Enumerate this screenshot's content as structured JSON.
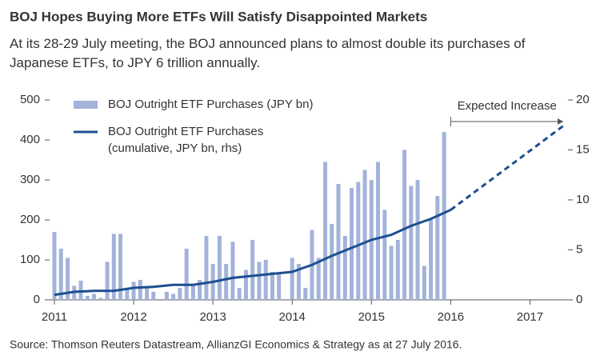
{
  "chart_data": {
    "type": "bar_line",
    "title": "BOJ Hopes Buying More ETFs Will Satisfy Disappointed Markets",
    "subtitle": "At its 28-29 July meeting, the BOJ announced plans to almost double its purchases of\nJapanese ETFs, to JPY 6 trillion annually.",
    "source": "Source: Thomson Reuters Datastream, AllianzGI Economics & Strategy as at 27 July 2016.",
    "annotation": {
      "text": "Expected Increase",
      "x": [
        2016,
        2017.42
      ]
    },
    "xlim": [
      2011,
      2017.48
    ],
    "xticks": [
      2011,
      2012,
      2013,
      2014,
      2015,
      2016,
      2017
    ],
    "ylim": [
      0,
      500
    ],
    "yticks": [
      0,
      100,
      200,
      300,
      400,
      500
    ],
    "y2lim": [
      0,
      20
    ],
    "y2ticks": [
      0,
      5,
      10,
      15,
      20
    ],
    "series": [
      {
        "name": "BOJ Outright ETF Purchases (JPY bn)",
        "kind": "bar",
        "color": "#a3b3da",
        "x": [
          2011,
          2011.083,
          2011.167,
          2011.25,
          2011.333,
          2011.417,
          2011.5,
          2011.583,
          2011.667,
          2011.75,
          2011.833,
          2011.917,
          2012,
          2012.083,
          2012.167,
          2012.25,
          2012.333,
          2012.417,
          2012.5,
          2012.583,
          2012.667,
          2012.75,
          2012.833,
          2012.917,
          2013,
          2013.083,
          2013.167,
          2013.25,
          2013.333,
          2013.417,
          2013.5,
          2013.583,
          2013.667,
          2013.75,
          2013.833,
          2013.917,
          2014,
          2014.083,
          2014.167,
          2014.25,
          2014.333,
          2014.417,
          2014.5,
          2014.583,
          2014.667,
          2014.75,
          2014.833,
          2014.917,
          2015,
          2015.083,
          2015.167,
          2015.25,
          2015.333,
          2015.417,
          2015.5,
          2015.583,
          2015.667,
          2015.75,
          2015.833,
          2015.917
        ],
        "values": [
          170,
          128,
          105,
          35,
          48,
          10,
          15,
          5,
          95,
          165,
          165,
          30,
          45,
          50,
          30,
          20,
          0,
          20,
          15,
          30,
          128,
          40,
          50,
          160,
          90,
          160,
          90,
          145,
          30,
          75,
          150,
          95,
          100,
          70,
          65,
          0,
          105,
          90,
          30,
          175,
          105,
          345,
          190,
          290,
          160,
          280,
          295,
          325,
          300,
          345,
          225,
          135,
          150,
          375,
          285,
          300,
          85,
          200,
          260,
          420
        ]
      },
      {
        "name": "BOJ Outright ETF Purchases\n(cumulative, JPY bn, rhs)",
        "kind": "line",
        "axis": "y2",
        "color": "#1d4f91",
        "x": [
          2011,
          2011.25,
          2011.5,
          2011.75,
          2012,
          2012.25,
          2012.5,
          2012.75,
          2013,
          2013.25,
          2013.5,
          2013.75,
          2014,
          2014.25,
          2014.5,
          2014.75,
          2015,
          2015.25,
          2015.5,
          2015.75,
          2016
        ],
        "values": [
          0.5,
          0.8,
          0.9,
          0.9,
          1.2,
          1.3,
          1.5,
          1.5,
          1.8,
          2.2,
          2.4,
          2.6,
          2.8,
          3.5,
          4.4,
          5.2,
          6.0,
          6.5,
          7.4,
          8.1,
          9.0
        ]
      },
      {
        "kind": "line",
        "axis": "y2",
        "color": "#1d4f91",
        "dashed": true,
        "x": [
          2016,
          2017.42
        ],
        "values": [
          9.0,
          17.4
        ]
      }
    ]
  }
}
